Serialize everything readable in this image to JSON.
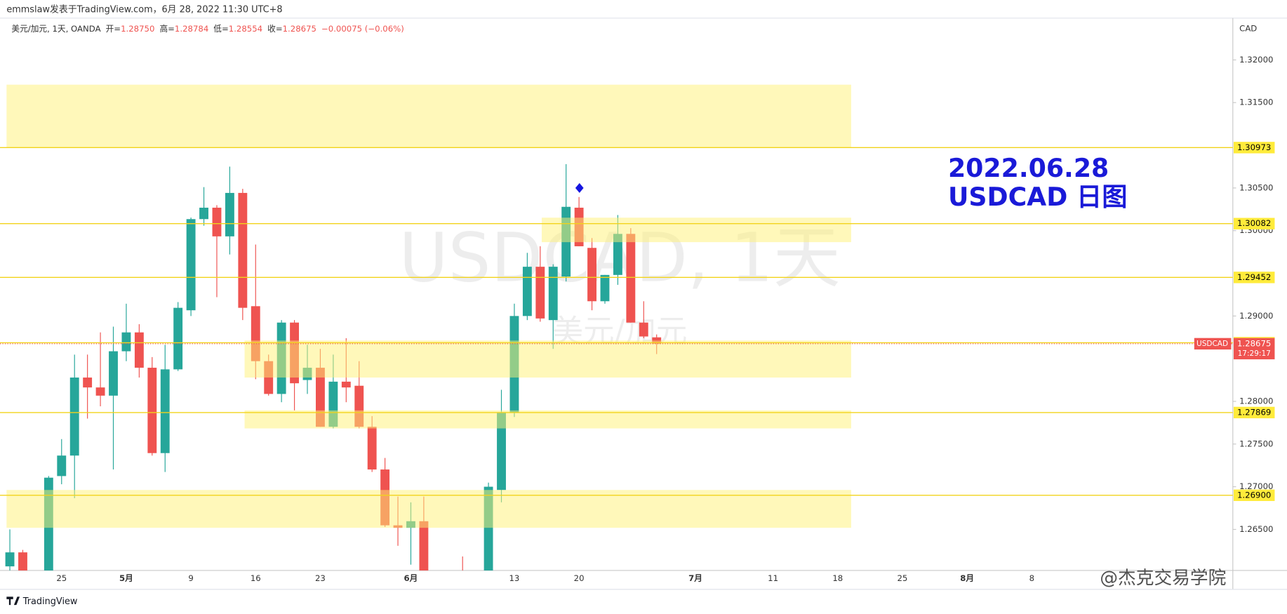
{
  "header": {
    "byline": "emmslaw发表于TradingView.com，6月 28, 2022 11:30 UTC+8"
  },
  "legend": {
    "symbol": "美元/加元, 1天, OANDA",
    "items": [
      {
        "label": "开=",
        "value": "1.28750"
      },
      {
        "label": "高=",
        "value": "1.28784"
      },
      {
        "label": "低=",
        "value": "1.28554"
      },
      {
        "label": "收=",
        "value": "1.28675"
      }
    ],
    "change": "−0.00075 (−0.06%)"
  },
  "chart_data": {
    "type": "candlestick",
    "categories": [
      null,
      null,
      null,
      null,
      "25",
      null,
      null,
      null,
      null,
      "5月",
      null,
      null,
      null,
      null,
      "9",
      null,
      null,
      null,
      null,
      "16",
      null,
      null,
      null,
      null,
      "23",
      null,
      null,
      null,
      null,
      null,
      null,
      "6月",
      null,
      null,
      null,
      null,
      null,
      null,
      null,
      "13",
      null,
      null,
      null,
      null,
      "20",
      null,
      null,
      null,
      null,
      null,
      null,
      null,
      null,
      "7月",
      null,
      null,
      null,
      null,
      null,
      "11",
      null,
      null,
      null,
      null,
      "18",
      null,
      null,
      null,
      null,
      "25",
      null,
      null,
      null,
      null,
      "8月",
      null,
      null,
      null,
      null,
      "8"
    ],
    "open": [
      1.26067,
      1.26231,
      null,
      1.2598,
      1.27125,
      1.27365,
      1.28279,
      1.28163,
      1.28067,
      1.28587,
      1.28808,
      1.28394,
      1.27394,
      1.28375,
      1.29067,
      1.30135,
      1.30269,
      1.29933,
      1.30442,
      1.29115,
      1.28471,
      1.28087,
      1.28923,
      1.2825,
      1.28394,
      1.27702,
      1.28231,
      1.28183,
      1.27702,
      1.27202,
      1.26548,
      1.26519,
      1.26596,
      null,
      null,
      1.2598,
      null,
      1.2598,
      1.26962,
      1.27865,
      1.29,
      1.29577,
      1.28952,
      1.29462,
      1.30269,
      1.29798,
      1.29173,
      1.29481,
      1.29962,
      1.28923,
      1.2875,
      null,
      null,
      null,
      null,
      null,
      null,
      null,
      null,
      null,
      null,
      null,
      null,
      null,
      null,
      null,
      null,
      null,
      null,
      null,
      null,
      null,
      null,
      null,
      null,
      null,
      null,
      null,
      null,
      null
    ],
    "high": [
      1.265,
      1.2626,
      null,
      1.27125,
      1.27558,
      1.28548,
      1.28548,
      1.28808,
      1.28875,
      1.29144,
      1.28904,
      1.28519,
      1.28663,
      1.29163,
      1.30154,
      1.3051,
      1.30298,
      1.3075,
      1.3049,
      1.29837,
      1.28548,
      1.28952,
      1.28952,
      1.28663,
      1.28615,
      1.28548,
      1.2874,
      1.28471,
      1.27827,
      1.27337,
      1.26885,
      1.26817,
      1.26885,
      null,
      null,
      1.26183,
      null,
      1.27048,
      1.28135,
      1.29144,
      1.2974,
      1.29817,
      1.29606,
      1.30779,
      1.30394,
      1.29913,
      1.29481,
      1.30183,
      1.30029,
      1.29173,
      1.28784,
      null,
      null,
      null,
      null,
      null,
      null,
      null,
      null,
      null,
      null,
      null,
      null,
      null,
      null,
      null,
      null,
      null,
      null,
      null,
      null,
      null,
      null,
      null,
      null,
      null,
      null,
      null,
      null,
      null
    ],
    "low": [
      1.26019,
      1.259,
      null,
      1.259,
      1.27029,
      1.26865,
      1.27798,
      1.27942,
      1.27202,
      1.28471,
      1.28279,
      1.27365,
      1.27173,
      1.28356,
      1.29,
      1.30058,
      1.29221,
      1.29721,
      1.28952,
      1.2826,
      1.28067,
      1.2799,
      1.27894,
      1.28087,
      1.27702,
      1.27683,
      1.2799,
      1.27683,
      1.27173,
      1.26529,
      1.26308,
      1.26087,
      1.258,
      null,
      null,
      1.256,
      null,
      1.259,
      1.26817,
      1.27817,
      1.28952,
      1.28933,
      1.28615,
      1.29404,
      1.29817,
      1.29067,
      1.29144,
      1.29365,
      1.28923,
      1.2874,
      1.28554,
      null,
      null,
      null,
      null,
      null,
      null,
      null,
      null,
      null,
      null,
      null,
      null,
      null,
      null,
      null,
      null,
      null,
      null,
      null,
      null,
      null,
      null,
      null,
      null,
      null,
      null,
      null,
      null,
      null
    ],
    "close": [
      1.26231,
      1.2597,
      null,
      1.27106,
      1.27365,
      1.28279,
      1.28163,
      1.28067,
      1.28587,
      1.28808,
      1.28394,
      1.27394,
      1.28375,
      1.29096,
      1.30135,
      1.30269,
      1.29933,
      1.30442,
      1.29096,
      1.28471,
      1.28087,
      1.28923,
      1.28212,
      1.28394,
      1.27702,
      1.28231,
      1.28163,
      1.27702,
      1.27202,
      1.26548,
      1.26519,
      1.26596,
      1.259,
      null,
      null,
      1.2575,
      null,
      1.27,
      1.27865,
      1.29,
      1.29577,
      1.28971,
      1.29577,
      1.30279,
      1.29817,
      1.29173,
      1.29481,
      1.29962,
      1.28923,
      1.2876,
      1.28675,
      null,
      null,
      null,
      null,
      null,
      null,
      null,
      null,
      null,
      null,
      null,
      null,
      null,
      null,
      null,
      null,
      null,
      null,
      null,
      null,
      null,
      null,
      null,
      null,
      null,
      null,
      null,
      null,
      null
    ],
    "up_color": "#26a69a",
    "down_color": "#ef5350",
    "y_axis_label": "CAD",
    "ylim": [
      1.26019,
      1.3249
    ],
    "yticks": [
      {
        "value": 1.265,
        "label": "1.26500"
      },
      {
        "value": 1.27,
        "label": "1.27000"
      },
      {
        "value": 1.275,
        "label": "1.27500"
      },
      {
        "value": 1.28,
        "label": "1.28000"
      },
      {
        "value": 1.29,
        "label": "1.29000"
      },
      {
        "value": 1.3,
        "label": "1.30000"
      },
      {
        "value": 1.305,
        "label": "1.30500"
      },
      {
        "value": 1.315,
        "label": "1.31500"
      },
      {
        "value": 1.32,
        "label": "1.32000"
      }
    ],
    "grid": false,
    "levels": [
      1.30973,
      1.30082,
      1.29452,
      1.28687,
      1.27869,
      {
        "value": 1.269,
        "label": "1.26900"
      }
    ],
    "level_color": "#f2d31b",
    "zones": [
      {
        "low": 1.30973,
        "high": 1.3171
      },
      {
        "low": 1.29865,
        "high": 1.30152
      },
      {
        "low": 1.28279,
        "high": 1.28712
      },
      {
        "low": 1.27683,
        "high": 1.27894
      },
      {
        "low": 1.26519,
        "high": 1.26962
      }
    ],
    "zone_color": "#fff176",
    "current_price": {
      "symbol": "USDCAD",
      "value": 1.28675,
      "countdown": "17:29:17"
    },
    "annotations": [
      "2022.06.28",
      "USDCAD 日图"
    ],
    "watermark": {
      "symbol": "USDCAD, 1天",
      "name": "美元/加元"
    }
  },
  "footer": {
    "brand": "TradingView",
    "credit": "@杰克交易学院"
  }
}
